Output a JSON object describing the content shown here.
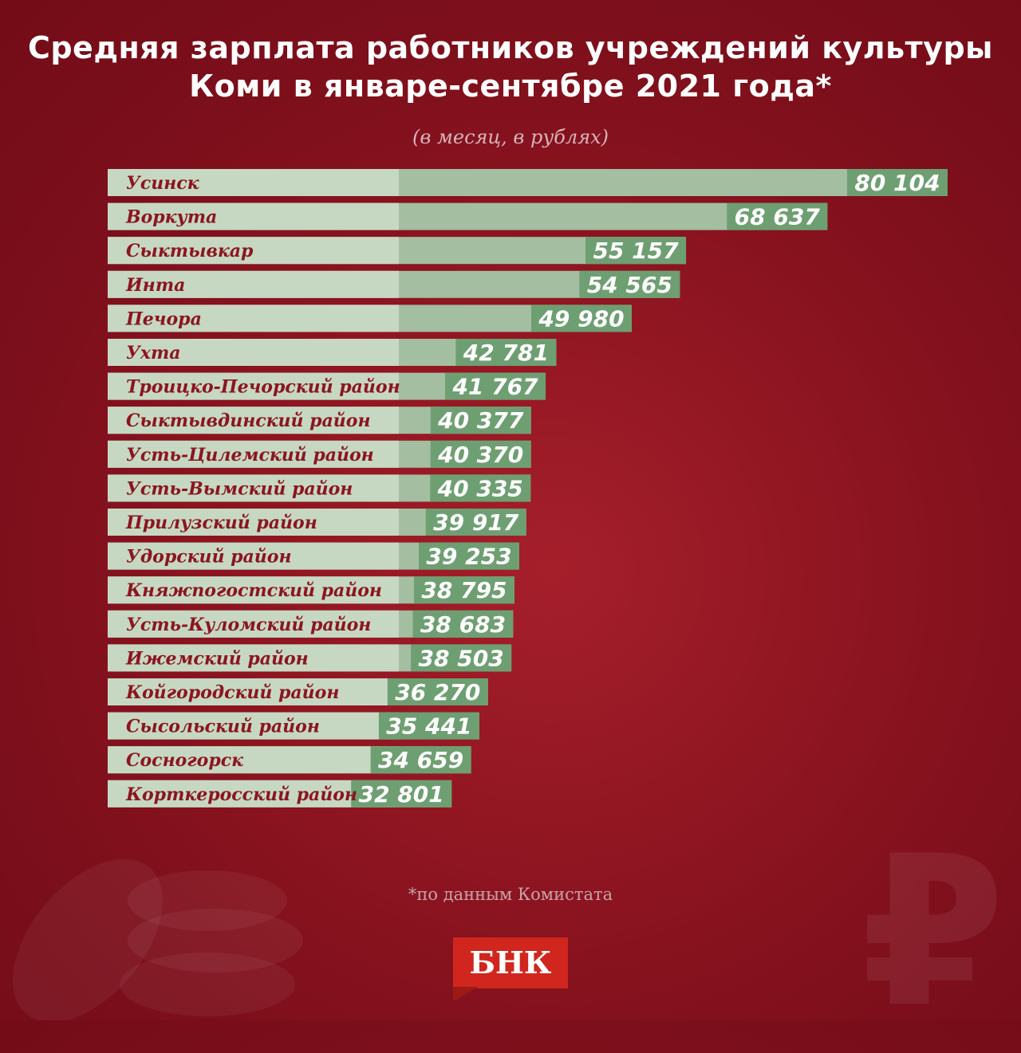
{
  "title_lines": [
    "Средняя зарплата работников учреждений культуры",
    "Коми в январе-сентябре 2021 года*"
  ],
  "subtitle": "(в месяц, в рублях)",
  "source_note": "*по данным Комистата",
  "logo_text": "БНК",
  "ruble_symbol": "₽",
  "colors": {
    "background": "#8e1521",
    "label_band": "#c7d8c2",
    "bar": "#a3bea0",
    "value_box": "#6e9f72",
    "label_text": "#8b1520",
    "logo": "#d0261d"
  },
  "chart_data": {
    "type": "bar",
    "orientation": "horizontal",
    "title": "Средняя зарплата работников учреждений культуры Коми в январе-сентябре 2021 года*",
    "subtitle": "(в месяц, в рублях)",
    "categories": [
      "Усинск",
      "Воркута",
      "Сыктывкар",
      "Инта",
      "Печора",
      "Ухта",
      "Троицко-Печорский район",
      "Сыктывдинский район",
      "Усть-Цилемский район",
      "Усть-Вымский район",
      "Прилузский район",
      "Удорский район",
      "Княжпогостский район",
      "Усть-Куломский район",
      "Ижемский район",
      "Койгородский район",
      "Сысольский район",
      "Сосногорск",
      "Корткеросский район"
    ],
    "values": [
      80104,
      68637,
      55157,
      54565,
      49980,
      42781,
      41767,
      40377,
      40370,
      40335,
      39917,
      39253,
      38795,
      38683,
      38503,
      36270,
      35441,
      34659,
      32801
    ],
    "value_labels": [
      "80 104",
      "68 637",
      "55 157",
      "54 565",
      "49 980",
      "42 781",
      "41 767",
      "40 377",
      "40 370",
      "40 335",
      "39 917",
      "39 253",
      "38 795",
      "38 683",
      "38 503",
      "36 270",
      "35 441",
      "34 659",
      "32 801"
    ],
    "xlim": [
      0,
      80104
    ]
  }
}
